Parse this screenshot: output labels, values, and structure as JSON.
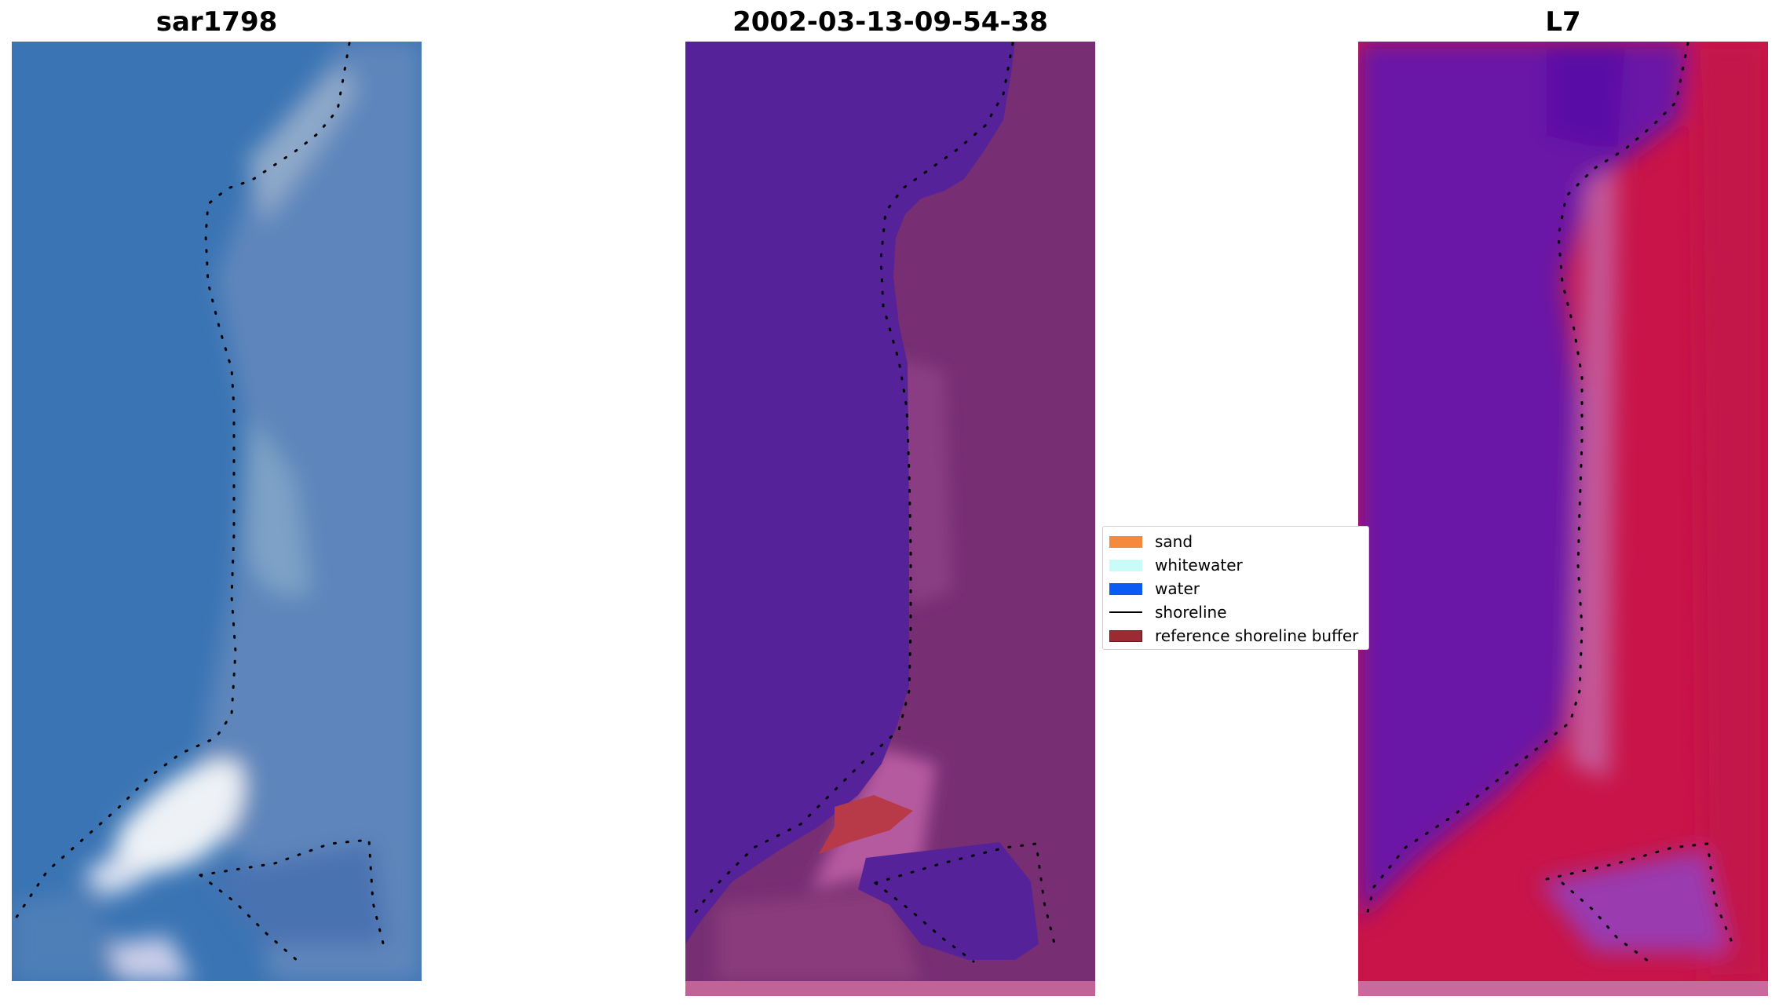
{
  "panels": [
    {
      "title": "sar1798"
    },
    {
      "title": "2002-03-13-09-54-38"
    },
    {
      "title": "L7"
    }
  ],
  "legend": {
    "items": [
      {
        "label": "sand",
        "color": "#f58a3c",
        "kind": "patch"
      },
      {
        "label": "whitewater",
        "color": "#c9fbf8",
        "kind": "patch"
      },
      {
        "label": "water",
        "color": "#0a5cf2",
        "kind": "patch"
      },
      {
        "label": "shoreline",
        "color": "#000000",
        "kind": "line"
      },
      {
        "label": "reference shoreline buffer",
        "color": "#9b2a33",
        "kind": "patch"
      }
    ]
  },
  "colors": {
    "rgb_water": "#3a76b6",
    "rgb_land": "#6f8fbf",
    "class_water": "#55229a",
    "class_land": "#772e73",
    "falsecolor_water": "#6a16a6",
    "falsecolor_land": "#c81448"
  }
}
